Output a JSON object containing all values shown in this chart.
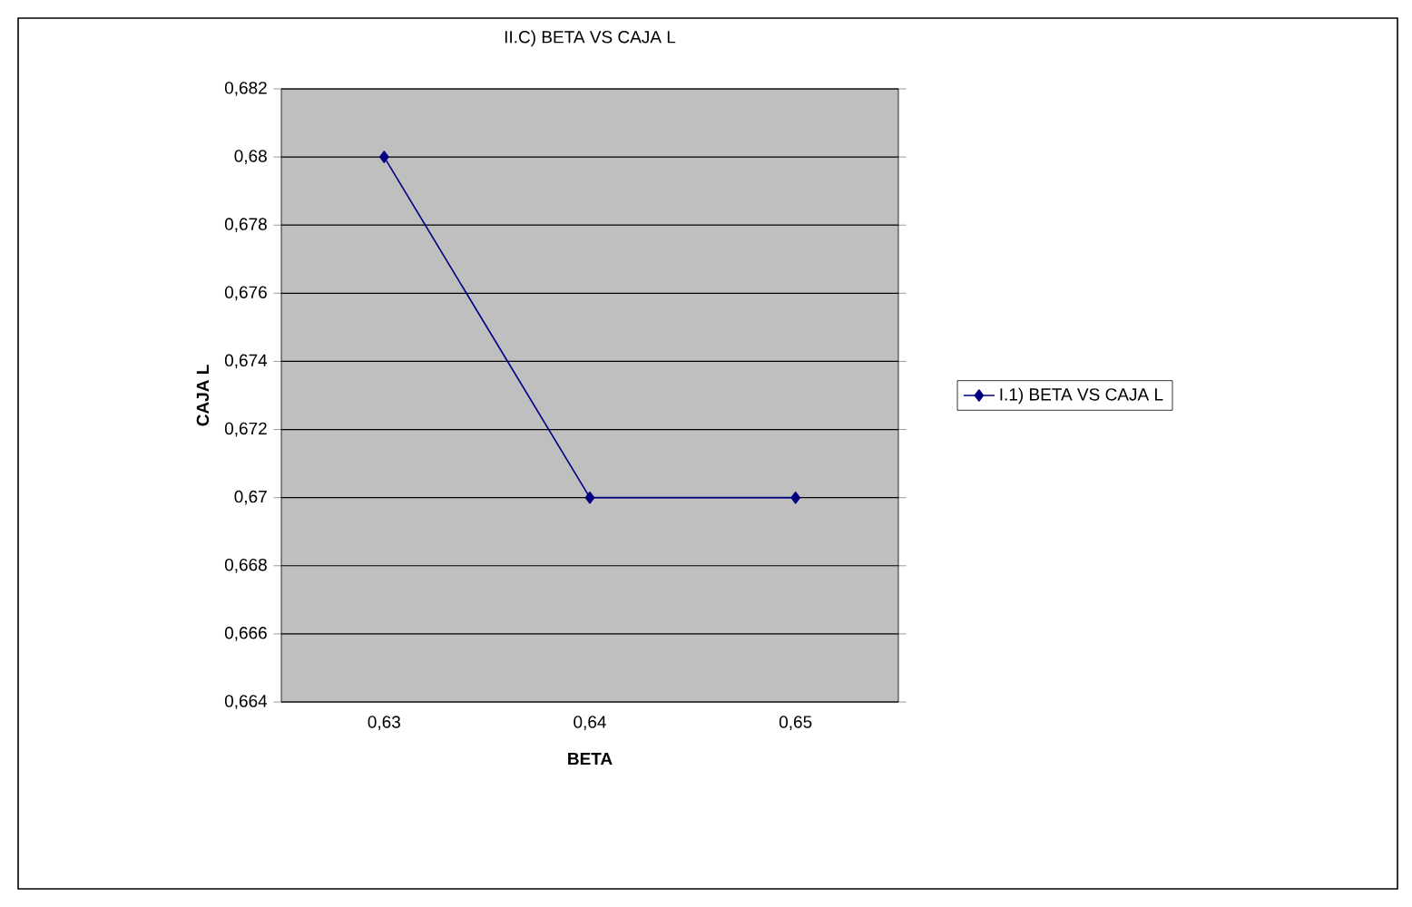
{
  "chart_data": {
    "type": "line",
    "title": "II.C) BETA VS CAJA L",
    "xlabel": "BETA",
    "ylabel": "CAJA L",
    "categories": [
      "0,63",
      "0,64",
      "0,65"
    ],
    "series": [
      {
        "name": "I.1) BETA VS CAJA L",
        "color": "#000080",
        "values": [
          0.68,
          0.67,
          0.67
        ]
      }
    ],
    "ylim": [
      0.664,
      0.682
    ],
    "yticks": [
      {
        "value": 0.664,
        "label": "0,664"
      },
      {
        "value": 0.666,
        "label": "0,666"
      },
      {
        "value": 0.668,
        "label": "0,668"
      },
      {
        "value": 0.67,
        "label": "0,67"
      },
      {
        "value": 0.672,
        "label": "0,672"
      },
      {
        "value": 0.674,
        "label": "0,674"
      },
      {
        "value": 0.676,
        "label": "0,676"
      },
      {
        "value": 0.678,
        "label": "0,678"
      },
      {
        "value": 0.68,
        "label": "0,68"
      },
      {
        "value": 0.682,
        "label": "0,682"
      }
    ],
    "grid": "y",
    "legend": "right",
    "marker": "diamond",
    "line_style": "solid"
  }
}
